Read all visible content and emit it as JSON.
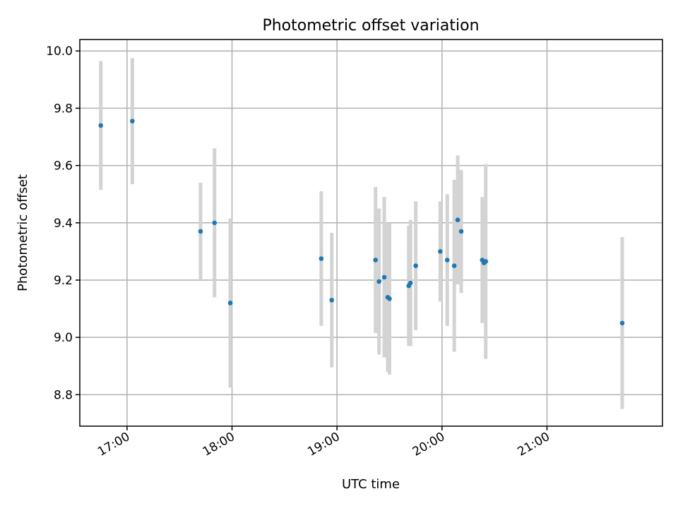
{
  "chart_data": {
    "type": "scatter",
    "title": "Photometric offset variation",
    "xlabel": "UTC time",
    "ylabel": "Photometric offset",
    "x_ticks": [
      "17:00",
      "18:00",
      "19:00",
      "20:00",
      "21:00"
    ],
    "y_ticks": [
      "8.8",
      "9.0",
      "9.2",
      "9.4",
      "9.6",
      "9.8",
      "10.0"
    ],
    "xlim": [
      "16:33",
      "22:06"
    ],
    "ylim": [
      8.69,
      10.04
    ],
    "grid": true,
    "series": [
      {
        "color": "#1f77b4",
        "errorbar_color": "#d3d3d3",
        "points": [
          {
            "x": "16:45",
            "y": 9.74,
            "err": 0.225
          },
          {
            "x": "17:03",
            "y": 9.755,
            "err": 0.22
          },
          {
            "x": "17:42",
            "y": 9.37,
            "err": 0.17
          },
          {
            "x": "17:50",
            "y": 9.4,
            "err": 0.26
          },
          {
            "x": "17:59",
            "y": 9.12,
            "err": 0.295
          },
          {
            "x": "18:51",
            "y": 9.275,
            "err": 0.235
          },
          {
            "x": "18:57",
            "y": 9.13,
            "err": 0.235
          },
          {
            "x": "19:22",
            "y": 9.27,
            "err": 0.255
          },
          {
            "x": "19:24",
            "y": 9.195,
            "err": 0.255
          },
          {
            "x": "19:27",
            "y": 9.21,
            "err": 0.28
          },
          {
            "x": "19:29",
            "y": 9.14,
            "err": 0.26
          },
          {
            "x": "19:30",
            "y": 9.135,
            "err": 0.265
          },
          {
            "x": "19:41",
            "y": 9.18,
            "err": 0.21
          },
          {
            "x": "19:42",
            "y": 9.19,
            "err": 0.22
          },
          {
            "x": "19:45",
            "y": 9.25,
            "err": 0.225
          },
          {
            "x": "19:59",
            "y": 9.3,
            "err": 0.175
          },
          {
            "x": "20:03",
            "y": 9.27,
            "err": 0.23
          },
          {
            "x": "20:07",
            "y": 9.25,
            "err": 0.3
          },
          {
            "x": "20:09",
            "y": 9.41,
            "err": 0.225
          },
          {
            "x": "20:11",
            "y": 9.37,
            "err": 0.215
          },
          {
            "x": "20:23",
            "y": 9.27,
            "err": 0.22
          },
          {
            "x": "20:24",
            "y": 9.26,
            "err": 0.2
          },
          {
            "x": "20:25",
            "y": 9.265,
            "err": 0.34
          },
          {
            "x": "21:43",
            "y": 9.05,
            "err": 0.3
          }
        ]
      }
    ]
  }
}
